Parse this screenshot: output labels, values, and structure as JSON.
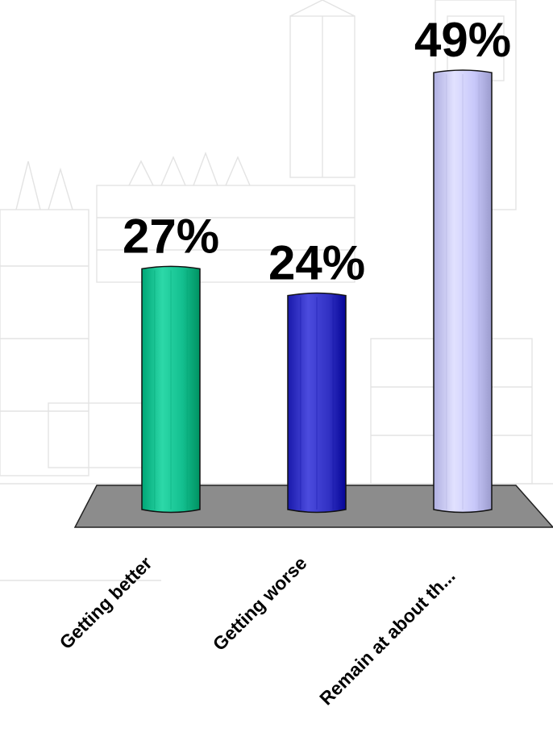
{
  "chart_data": {
    "type": "bar",
    "categories": [
      "Getting better",
      "Getting worse",
      "Remain at about th..."
    ],
    "values": [
      27,
      24,
      49
    ],
    "value_labels": [
      "27%",
      "24%",
      "49%"
    ],
    "unit": "%",
    "ylim": [
      0,
      49
    ],
    "title": "",
    "xlabel": "",
    "ylabel": "",
    "grid": false,
    "legend": "none",
    "colors": {
      "bars": [
        "#13bf8f",
        "#3232c4",
        "#c8c8fa"
      ],
      "floor": "#8c8c8c",
      "background_sketch": "#e3e3e3"
    }
  }
}
